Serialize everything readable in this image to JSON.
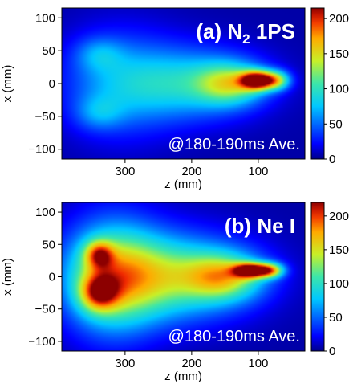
{
  "chart_data": [
    {
      "type": "heatmap",
      "panel_title": {
        "main": "(a) N",
        "subscript": "2",
        "rest": " 1PS"
      },
      "annotation": "@180-190ms Ave.",
      "xlabel": "z (mm)",
      "ylabel": "x (mm)",
      "xlim": [
        395,
        30
      ],
      "ylim": [
        -115,
        115
      ],
      "x_ticks": [
        300,
        200,
        100
      ],
      "y_ticks": [
        100,
        50,
        0,
        -50,
        -100
      ],
      "colorbar": {
        "ticks": [
          0,
          50,
          100,
          150,
          200
        ],
        "range": [
          0,
          215
        ],
        "tick_labels": [
          "0",
          "50",
          "100",
          "150",
          "200"
        ]
      },
      "background_level": 5,
      "blobs": [
        {
          "z": 310,
          "x": 0,
          "sz": 60,
          "sx": 55,
          "value": 55
        },
        {
          "z": 200,
          "x": 0,
          "sz": 70,
          "sx": 38,
          "value": 75
        },
        {
          "z": 140,
          "x": 0,
          "sz": 35,
          "sx": 22,
          "value": 95
        },
        {
          "z": 100,
          "x": 5,
          "sz": 18,
          "sx": 10,
          "value": 200
        },
        {
          "z": 70,
          "x": 5,
          "sz": 14,
          "sx": 10,
          "value": 90
        },
        {
          "z": 340,
          "x": 45,
          "sz": 25,
          "sx": 18,
          "value": 35
        },
        {
          "z": 340,
          "x": -45,
          "sz": 25,
          "sx": 18,
          "value": 35
        }
      ]
    },
    {
      "type": "heatmap",
      "panel_title": {
        "main": "(b) Ne I",
        "subscript": "",
        "rest": ""
      },
      "annotation": "@180-190ms Ave.",
      "xlabel": "z (mm)",
      "ylabel": "x (mm)",
      "xlim": [
        395,
        30
      ],
      "ylim": [
        -115,
        115
      ],
      "x_ticks": [
        300,
        200,
        100
      ],
      "y_ticks": [
        100,
        50,
        0,
        -50,
        -100
      ],
      "colorbar": {
        "ticks": [
          0,
          50,
          100,
          150,
          200
        ],
        "range": [
          0,
          220
        ],
        "tick_labels": [
          "0",
          "50",
          "100",
          "150",
          "200"
        ]
      },
      "background_level": 5,
      "blobs": [
        {
          "z": 320,
          "x": 0,
          "sz": 50,
          "sx": 60,
          "value": 120
        },
        {
          "z": 230,
          "x": 0,
          "sz": 80,
          "sx": 45,
          "value": 115
        },
        {
          "z": 150,
          "x": 0,
          "sz": 40,
          "sx": 25,
          "value": 105
        },
        {
          "z": 340,
          "x": 35,
          "sz": 15,
          "sx": 15,
          "value": 100
        },
        {
          "z": 340,
          "x": -25,
          "sz": 20,
          "sx": 20,
          "value": 110
        },
        {
          "z": 110,
          "x": 10,
          "sz": 18,
          "sx": 8,
          "value": 190
        },
        {
          "z": 80,
          "x": 10,
          "sz": 14,
          "sx": 8,
          "value": 120
        }
      ]
    }
  ]
}
